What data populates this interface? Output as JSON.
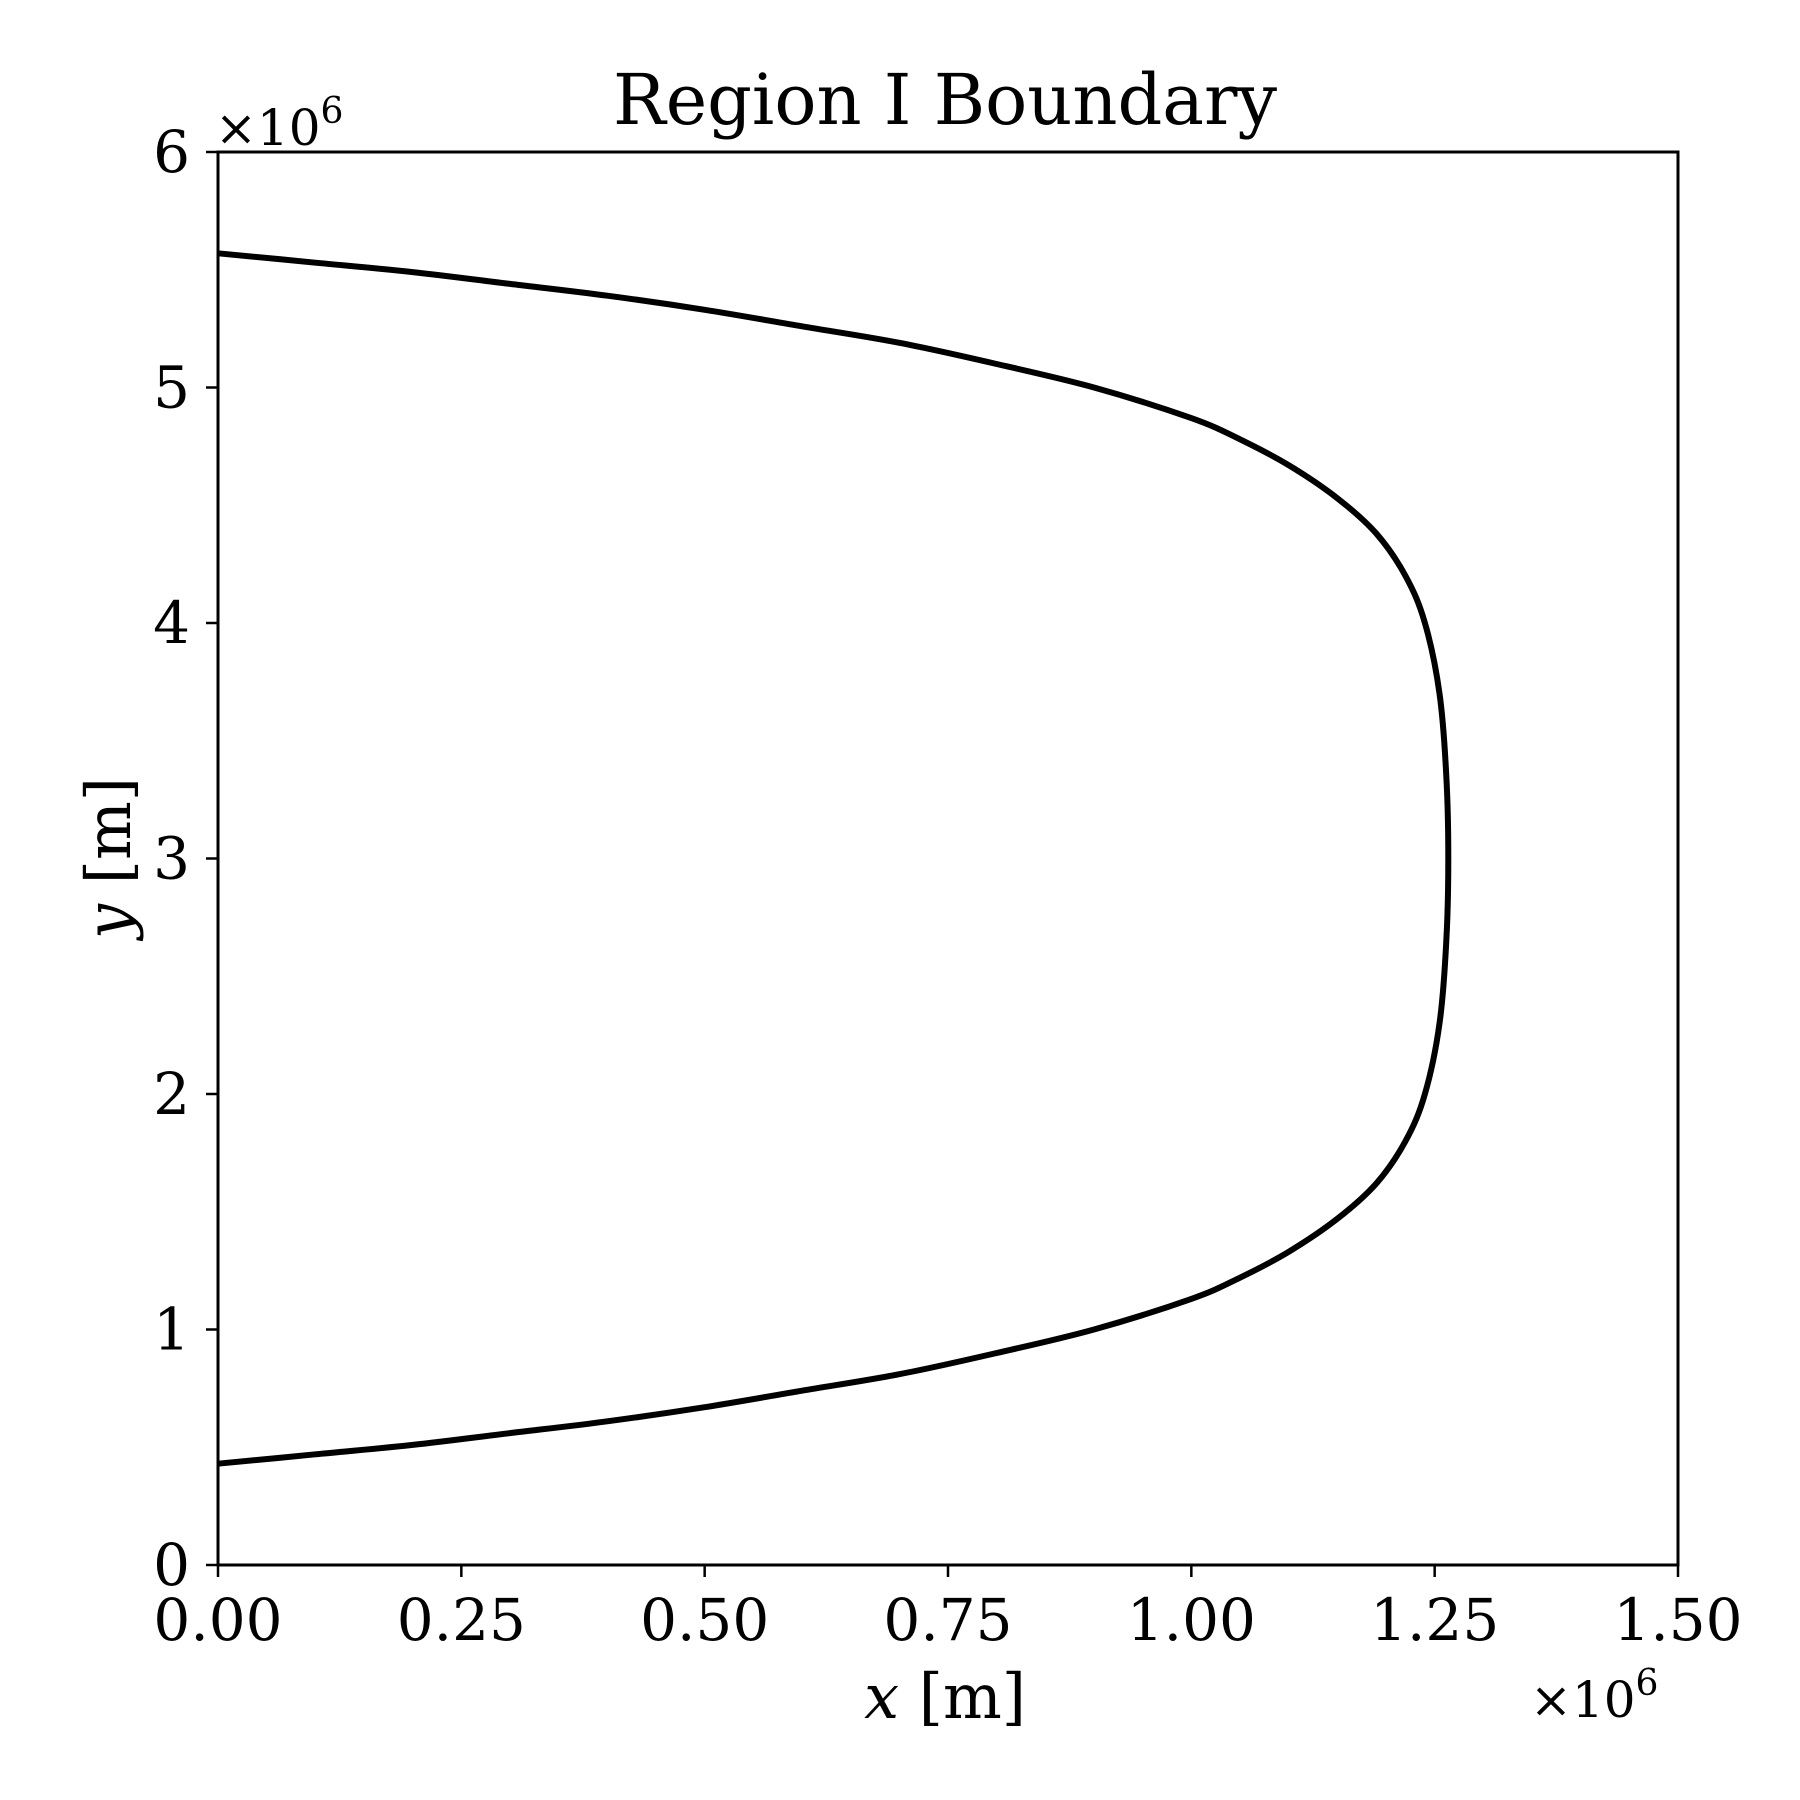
{
  "chart_data": {
    "type": "line",
    "title": "Region I Boundary",
    "xlabel_var": "x",
    "xlabel_unit": "[m]",
    "ylabel_var": "y",
    "ylabel_unit": "[m]",
    "x_offset_text": "×10",
    "x_offset_exp": "6",
    "y_offset_text": "×10",
    "y_offset_exp": "6",
    "xlim": [
      0,
      1.5
    ],
    "ylim": [
      0,
      6
    ],
    "x_ticks": [
      0,
      0.25,
      0.5,
      0.75,
      1.0,
      1.25,
      1.5
    ],
    "x_tick_labels": [
      "0.00",
      "0.25",
      "0.50",
      "0.75",
      "1.00",
      "1.25",
      "1.50"
    ],
    "y_ticks": [
      0,
      1,
      2,
      3,
      4,
      5,
      6
    ],
    "y_tick_labels": [
      "0",
      "1",
      "2",
      "3",
      "4",
      "5",
      "6"
    ],
    "grid": false,
    "series": [
      {
        "color": "#000000",
        "points": [
          [
            0.0,
            0.43
          ],
          [
            0.1,
            0.47
          ],
          [
            0.2,
            0.51
          ],
          [
            0.3,
            0.56
          ],
          [
            0.4,
            0.61
          ],
          [
            0.5,
            0.67
          ],
          [
            0.6,
            0.74
          ],
          [
            0.7,
            0.81
          ],
          [
            0.8,
            0.9
          ],
          [
            0.9,
            1.0
          ],
          [
            1.0,
            1.13
          ],
          [
            1.05,
            1.22
          ],
          [
            1.1,
            1.33
          ],
          [
            1.15,
            1.47
          ],
          [
            1.19,
            1.62
          ],
          [
            1.22,
            1.8
          ],
          [
            1.24,
            2.0
          ],
          [
            1.255,
            2.3
          ],
          [
            1.262,
            2.65
          ],
          [
            1.264,
            3.0
          ],
          [
            1.262,
            3.35
          ],
          [
            1.255,
            3.7
          ],
          [
            1.24,
            4.0
          ],
          [
            1.22,
            4.2
          ],
          [
            1.19,
            4.38
          ],
          [
            1.15,
            4.53
          ],
          [
            1.1,
            4.67
          ],
          [
            1.05,
            4.78
          ],
          [
            1.0,
            4.87
          ],
          [
            0.9,
            5.0
          ],
          [
            0.8,
            5.1
          ],
          [
            0.7,
            5.19
          ],
          [
            0.6,
            5.26
          ],
          [
            0.5,
            5.33
          ],
          [
            0.4,
            5.39
          ],
          [
            0.3,
            5.44
          ],
          [
            0.2,
            5.49
          ],
          [
            0.1,
            5.53
          ],
          [
            0.0,
            5.57
          ]
        ]
      }
    ]
  }
}
